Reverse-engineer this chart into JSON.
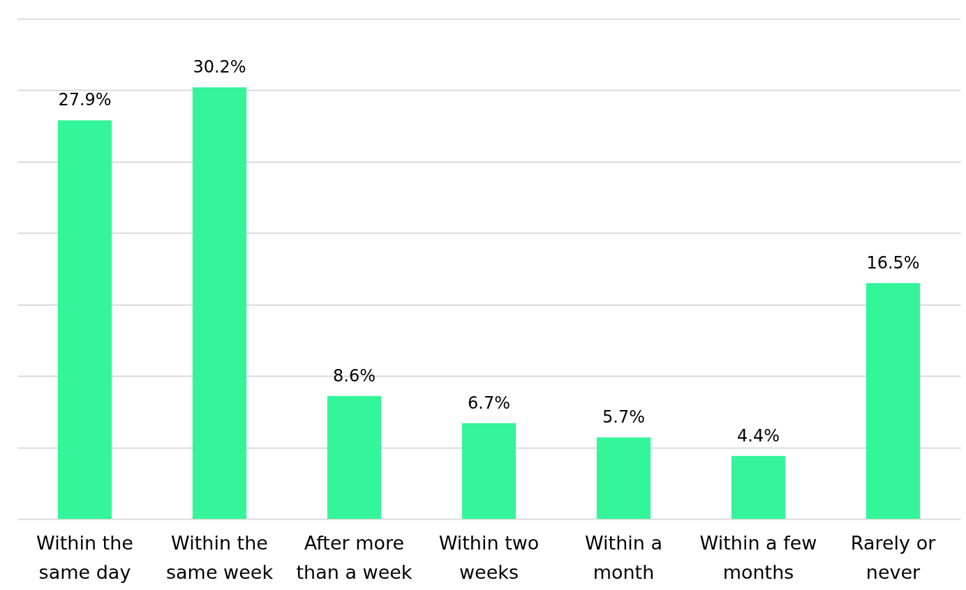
{
  "chart_data": {
    "type": "bar",
    "categories": [
      "Within the same day",
      "Within the same week",
      "After more than a week",
      "Within two weeks",
      "Within a month",
      "Within a few months",
      "Rarely or never"
    ],
    "values": [
      27.9,
      30.2,
      8.6,
      6.7,
      5.7,
      4.4,
      16.5
    ],
    "color": "#34f59a",
    "value_labels": [
      "27.9%",
      "30.2%",
      "8.6%",
      "6.7%",
      "5.7%",
      "4.4%",
      "16.5%"
    ],
    "ylim": [
      0,
      35
    ],
    "yticks": [
      {
        "value": 0,
        "label": null
      },
      {
        "value": 5,
        "label": null
      },
      {
        "value": 10,
        "label": null
      },
      {
        "value": 15,
        "label": null
      },
      {
        "value": 20,
        "label": null
      },
      {
        "value": 25,
        "label": null
      },
      {
        "value": 30,
        "label": null
      },
      {
        "value": 35,
        "label": null
      }
    ],
    "grid": "y",
    "tick_labels": "x"
  }
}
